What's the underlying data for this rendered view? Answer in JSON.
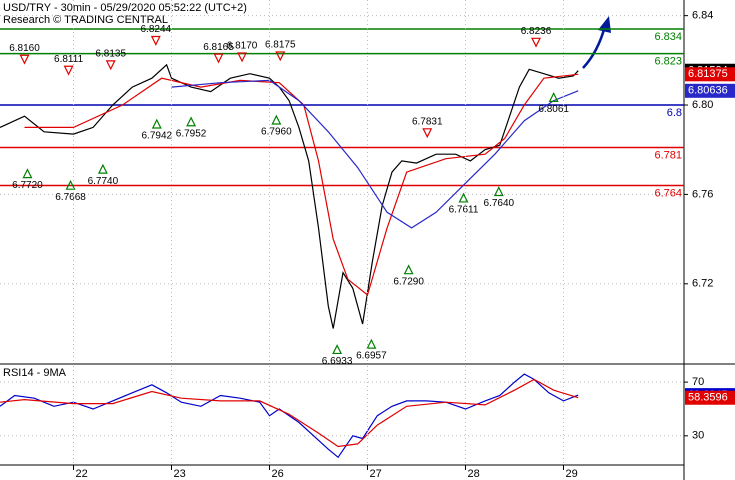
{
  "chart_data": [
    {
      "type": "line",
      "title": "USD/TRY - 30min - 05/29/2020 05:52:22 (UTC+2)",
      "subtitle": "Research © TRADING CENTRAL",
      "xlim": [
        -0.75,
        6.23
      ],
      "ylim": [
        6.685,
        6.847
      ],
      "yticks": [
        6.72,
        6.76,
        {
          "value": 6.8,
          "label": "6.80"
        },
        6.84
      ],
      "grid": true,
      "series": [
        {
          "color": "#000000",
          "x": [
            -0.75,
            -0.5,
            -0.3,
            0,
            0.2,
            0.4,
            0.6,
            0.8,
            0.95,
            1.0,
            1.2,
            1.4,
            1.6,
            1.8,
            2.0,
            2.1,
            2.2,
            2.3,
            2.4,
            2.5,
            2.6,
            2.65,
            2.75,
            2.85,
            2.95,
            3.05,
            3.15,
            3.25,
            3.35,
            3.5,
            3.7,
            3.9,
            4.05,
            4.2,
            4.35,
            4.45,
            4.55,
            4.65,
            4.8,
            4.95,
            5.1,
            5.15
          ],
          "values": [
            6.79,
            6.795,
            6.788,
            6.787,
            6.79,
            6.8,
            6.808,
            6.812,
            6.818,
            6.812,
            6.808,
            6.806,
            6.812,
            6.814,
            6.812,
            6.808,
            6.802,
            6.79,
            6.775,
            6.745,
            6.71,
            6.7,
            6.725,
            6.718,
            6.702,
            6.73,
            6.755,
            6.77,
            6.775,
            6.774,
            6.778,
            6.778,
            6.775,
            6.78,
            6.782,
            6.795,
            6.808,
            6.816,
            6.814,
            6.812,
            6.813,
            6.81534
          ]
        },
        {
          "color": "#e00000",
          "x": [
            -0.5,
            0,
            0.5,
            0.9,
            1.3,
            1.7,
            2.1,
            2.35,
            2.5,
            2.65,
            2.8,
            3.0,
            3.2,
            3.4,
            3.8,
            4.2,
            4.4,
            4.6,
            4.8,
            5.15
          ],
          "values": [
            6.79,
            6.79,
            6.8,
            6.812,
            6.808,
            6.811,
            6.81,
            6.8,
            6.775,
            6.74,
            6.722,
            6.715,
            6.745,
            6.77,
            6.776,
            6.778,
            6.785,
            6.8,
            6.812,
            6.81375
          ]
        },
        {
          "color": "#2828c8",
          "x": [
            1.0,
            1.5,
            2.0,
            2.3,
            2.6,
            2.9,
            3.2,
            3.45,
            3.7,
            4.0,
            4.3,
            4.6,
            4.9,
            5.15
          ],
          "values": [
            6.808,
            6.81,
            6.811,
            6.802,
            6.788,
            6.772,
            6.752,
            6.745,
            6.752,
            6.765,
            6.778,
            6.793,
            6.802,
            6.80636
          ]
        }
      ],
      "levels": [
        {
          "value": 6.834,
          "color": "#008000"
        },
        {
          "value": 6.823,
          "color": "#008000"
        },
        {
          "value": 6.8,
          "color": "#0000b0"
        },
        {
          "value": 6.781,
          "color": "#e00000"
        },
        {
          "value": 6.764,
          "color": "#e00000"
        }
      ],
      "pivots": [
        {
          "x": -0.5,
          "value": 6.816,
          "label": "6.8160",
          "kind": "high"
        },
        {
          "x": -0.05,
          "value": 6.8111,
          "label": "6.8111",
          "kind": "high"
        },
        {
          "x": 0.38,
          "value": 6.8135,
          "label": "6.8135",
          "kind": "high"
        },
        {
          "x": 0.84,
          "value": 6.8244,
          "label": "6.8244",
          "kind": "high"
        },
        {
          "x": 1.48,
          "value": 6.8165,
          "label": "6.8165",
          "kind": "high"
        },
        {
          "x": 1.72,
          "value": 6.817,
          "label": "6.8170",
          "kind": "high"
        },
        {
          "x": 2.11,
          "value": 6.8175,
          "label": "6.8175",
          "kind": "high"
        },
        {
          "x": 3.61,
          "value": 6.7831,
          "label": "6.7831",
          "kind": "high"
        },
        {
          "x": 4.72,
          "value": 6.8236,
          "label": "6.8236",
          "kind": "high"
        },
        {
          "x": -0.47,
          "value": 6.772,
          "label": "6.7720",
          "kind": "low"
        },
        {
          "x": -0.03,
          "value": 6.7668,
          "label": "6.7668",
          "kind": "low"
        },
        {
          "x": 0.3,
          "value": 6.774,
          "label": "6.7740",
          "kind": "low"
        },
        {
          "x": 0.85,
          "value": 6.7942,
          "label": "6.7942",
          "kind": "low"
        },
        {
          "x": 1.2,
          "value": 6.7952,
          "label": "6.7952",
          "kind": "low"
        },
        {
          "x": 2.07,
          "value": 6.796,
          "label": "6.7960",
          "kind": "low"
        },
        {
          "x": 2.69,
          "value": 6.6933,
          "label": "6.6933",
          "kind": "low"
        },
        {
          "x": 3.04,
          "value": 6.6957,
          "label": "6.6957",
          "kind": "low"
        },
        {
          "x": 3.42,
          "value": 6.729,
          "label": "6.7290",
          "kind": "low"
        },
        {
          "x": 3.98,
          "value": 6.7611,
          "label": "6.7611",
          "kind": "low"
        },
        {
          "x": 4.34,
          "value": 6.764,
          "label": "6.7640",
          "kind": "low"
        },
        {
          "x": 4.9,
          "value": 6.8061,
          "label": "6.8061",
          "kind": "low"
        }
      ]
    },
    {
      "type": "line",
      "title": "RSI14 - 9MA",
      "xlim": [
        -0.75,
        6.23
      ],
      "xticks": [
        {
          "value": 0,
          "label": "22"
        },
        {
          "value": 1,
          "label": "23"
        },
        {
          "value": 2,
          "label": "26"
        },
        {
          "value": 3,
          "label": "27"
        },
        {
          "value": 4,
          "label": "28"
        },
        {
          "value": 5,
          "label": "29"
        }
      ],
      "ylim": [
        9,
        82
      ],
      "yticks": [
        30,
        70
      ],
      "grid": true,
      "series": [
        {
          "color": "#0000cc",
          "x": [
            -0.75,
            -0.6,
            -0.4,
            -0.2,
            0,
            0.2,
            0.4,
            0.6,
            0.8,
            0.95,
            1.1,
            1.3,
            1.5,
            1.7,
            1.9,
            2.0,
            2.1,
            2.3,
            2.45,
            2.6,
            2.7,
            2.85,
            2.95,
            3.1,
            3.25,
            3.4,
            3.6,
            3.8,
            4.0,
            4.2,
            4.35,
            4.5,
            4.6,
            4.7,
            4.85,
            5.0,
            5.15
          ],
          "values": [
            52,
            60,
            58,
            52,
            55,
            50,
            56,
            62,
            68,
            62,
            55,
            52,
            60,
            58,
            55,
            45,
            50,
            40,
            30,
            20,
            14,
            30,
            28,
            45,
            52,
            56,
            56,
            55,
            50,
            56,
            60,
            70,
            76,
            72,
            62,
            56,
            60.2945
          ]
        },
        {
          "color": "#e00000",
          "x": [
            -0.75,
            -0.5,
            0,
            0.4,
            0.8,
            1.1,
            1.5,
            1.9,
            2.2,
            2.5,
            2.7,
            2.9,
            3.1,
            3.4,
            3.8,
            4.2,
            4.5,
            4.7,
            4.9,
            5.15
          ],
          "values": [
            55,
            57,
            54,
            54,
            63,
            58,
            56,
            56,
            46,
            32,
            22,
            24,
            38,
            52,
            55,
            53,
            64,
            72,
            64,
            58.3596
          ]
        }
      ]
    }
  ]
}
